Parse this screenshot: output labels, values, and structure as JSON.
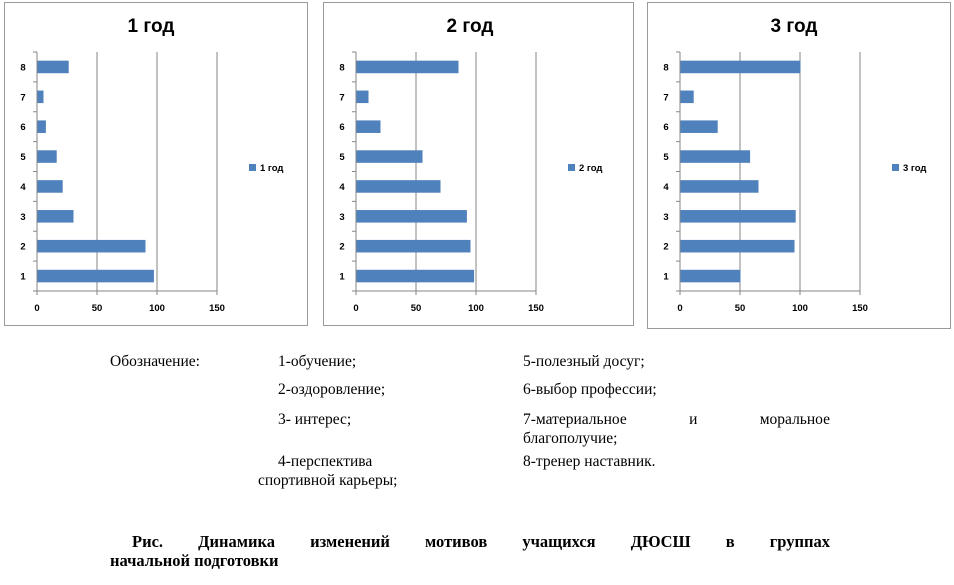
{
  "colors": {
    "bar": "#4f81bd",
    "grid": "#868686",
    "axis": "#868686",
    "border": "#9a9a9a"
  },
  "chart_data": [
    {
      "type": "bar",
      "orientation": "horizontal",
      "title": "1 год",
      "categories": [
        "1",
        "2",
        "3",
        "4",
        "5",
        "6",
        "7",
        "8"
      ],
      "series": [
        {
          "name": "1 год",
          "values": [
            97,
            90,
            30,
            21,
            16,
            7,
            5,
            26
          ]
        }
      ],
      "xlim": [
        0,
        150
      ],
      "xticks": [
        "0",
        "50",
        "100",
        "150"
      ],
      "grid": true,
      "legend": "right"
    },
    {
      "type": "bar",
      "orientation": "horizontal",
      "title": "2 год",
      "categories": [
        "1",
        "2",
        "3",
        "4",
        "5",
        "6",
        "7",
        "8"
      ],
      "series": [
        {
          "name": "2 год",
          "values": [
            98,
            95,
            92,
            70,
            55,
            20,
            10,
            85
          ]
        }
      ],
      "xlim": [
        0,
        150
      ],
      "xticks": [
        "0",
        "50",
        "100",
        "150"
      ],
      "grid": true,
      "legend": "right"
    },
    {
      "type": "bar",
      "orientation": "horizontal",
      "title": "3 год",
      "categories": [
        "1",
        "2",
        "3",
        "4",
        "5",
        "6",
        "7",
        "8"
      ],
      "series": [
        {
          "name": "3 год",
          "values": [
            50,
            95,
            96,
            65,
            58,
            31,
            11,
            100
          ]
        }
      ],
      "xlim": [
        0,
        150
      ],
      "xticks": [
        "0",
        "50",
        "100",
        "150"
      ],
      "grid": true,
      "legend": "right"
    }
  ],
  "legend": {
    "heading": "Обозначение:",
    "items": [
      "1-обучение;",
      "2-оздоровление;",
      "3- интерес;",
      "4-перспектива",
      "спортивной карьеры;",
      "5-полезный досуг;",
      "6-выбор профессии;",
      "7-материальное и моральное",
      "благополучие;",
      "8-тренер наставник."
    ],
    "item7_words": [
      "7-материальное",
      "и",
      "моральное"
    ]
  },
  "caption": {
    "line1": "Рис. Динамика изменений мотивов учащихся ДЮСШ в группах",
    "line2": "начальной подготовки"
  }
}
